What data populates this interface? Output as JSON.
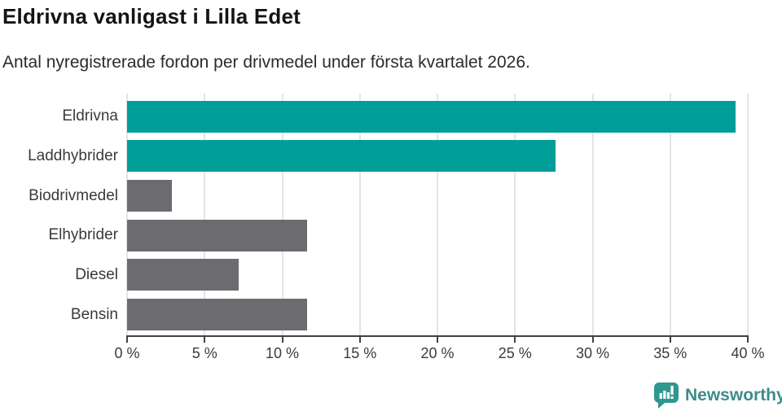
{
  "chart_data": {
    "type": "bar",
    "orientation": "horizontal",
    "title": "Eldrivna vanligast i Lilla Edet",
    "subtitle": "Antal nyregistrerade fordon per drivmedel under första kvartalet 2026.",
    "categories": [
      "Eldrivna",
      "Laddhybrider",
      "Biodrivmedel",
      "Elhybrider",
      "Diesel",
      "Bensin"
    ],
    "values": [
      39.2,
      27.6,
      2.9,
      11.6,
      7.2,
      11.6
    ],
    "value_unit": "%",
    "xlim": [
      0,
      40
    ],
    "x_ticks": [
      {
        "value": 0,
        "label": "0 %"
      },
      {
        "value": 5,
        "label": "5 %"
      },
      {
        "value": 10,
        "label": "10 %"
      },
      {
        "value": 15,
        "label": "15 %"
      },
      {
        "value": 20,
        "label": "20 %"
      },
      {
        "value": 25,
        "label": "25 %"
      },
      {
        "value": 30,
        "label": "30 %"
      },
      {
        "value": 35,
        "label": "35 %"
      },
      {
        "value": 40,
        "label": "40 %"
      }
    ],
    "grid": true,
    "legend": "none",
    "bar_colors": [
      "#009e98",
      "#009e98",
      "#6c6c70",
      "#6c6c70",
      "#6c6c70",
      "#6c6c70"
    ],
    "colors": {
      "highlight": "#009e98",
      "default": "#6c6c70",
      "gridline": "#e4e4e4",
      "axis": "#414141",
      "label_text": "#3a3a3a"
    }
  },
  "footer": {
    "brand": "Newsworthy",
    "brand_color": "#3e8b8b",
    "logo_bubble_color": "#2f9690",
    "logo_icon": "newsworthy-speech-bubble-bar-chart-icon"
  }
}
